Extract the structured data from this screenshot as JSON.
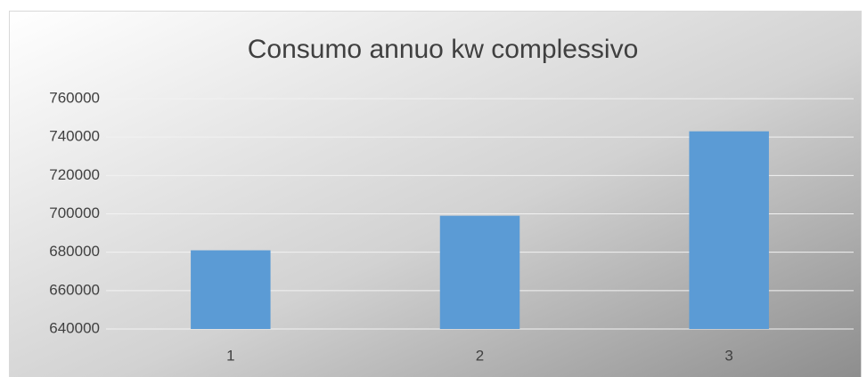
{
  "chart_data": {
    "type": "bar",
    "title": "Consumo annuo kw complessivo",
    "categories": [
      "1",
      "2",
      "3"
    ],
    "values": [
      681000,
      699000,
      743000
    ],
    "color": "#5b9bd5",
    "ylim": [
      640000,
      760000
    ],
    "yticks": [
      640000,
      660000,
      680000,
      700000,
      720000,
      740000,
      760000
    ],
    "grid": true
  }
}
